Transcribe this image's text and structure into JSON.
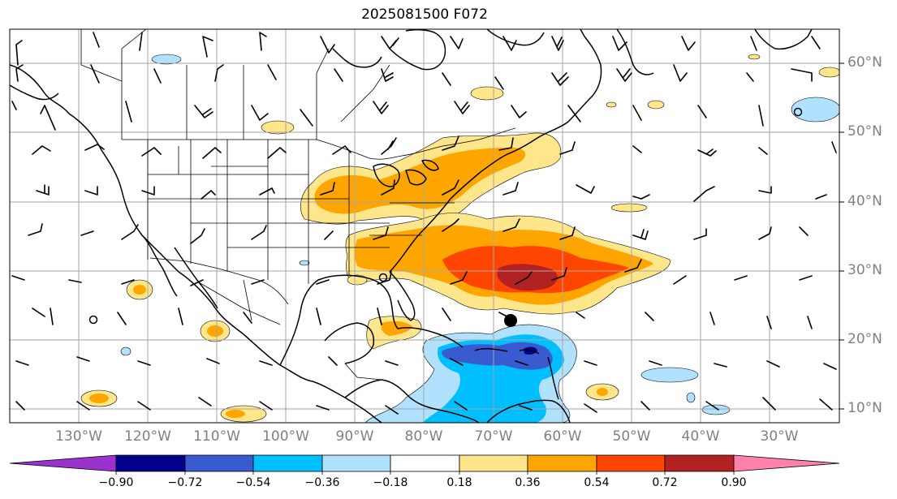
{
  "title": "2025081500 F072",
  "latitude_labels": [
    "60°N",
    "50°N",
    "40°N",
    "30°N",
    "20°N",
    "10°N"
  ],
  "longitude_labels": [
    "130°W",
    "120°W",
    "110°W",
    "100°W",
    "90°W",
    "80°W",
    "70°W",
    "60°W",
    "50°W",
    "40°W",
    "30°W"
  ],
  "colorbar": {
    "ticks": [
      "−0.90",
      "−0.72",
      "−0.54",
      "−0.36",
      "−0.18",
      "0.18",
      "0.36",
      "0.54",
      "0.72",
      "0.90"
    ],
    "colors": [
      "#9a32cd",
      "#00008b",
      "#3a5bd0",
      "#00bfff",
      "#b0e2ff",
      "#ffffff",
      "#ffe68a",
      "#ffa500",
      "#ff4500",
      "#b22222",
      "#ff82ab"
    ]
  },
  "colors": {
    "land_outline": "#000000",
    "grid": "#a6a6a6",
    "label_gray": "#808080"
  },
  "marker": {
    "label": "storm center",
    "lat": 22.5,
    "lon": -67.5
  }
}
